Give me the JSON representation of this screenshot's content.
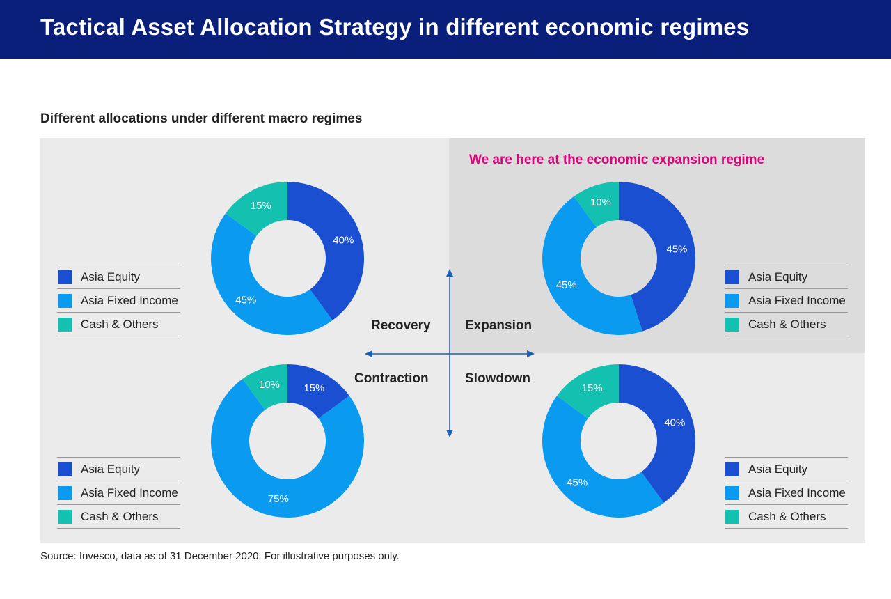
{
  "header": {
    "title": "Tactical Asset Allocation Strategy in different economic regimes"
  },
  "subtitle": "Different allocations under different macro regimes",
  "highlight_note": "We are here at the economic expansion regime",
  "quadrant_labels": {
    "recovery": "Recovery",
    "expansion": "Expansion",
    "contraction": "Contraction",
    "slowdown": "Slowdown"
  },
  "legend_labels": [
    "Asia Equity",
    "Asia Fixed Income",
    "Cash & Others"
  ],
  "colors": {
    "asia_equity": "#1a4fd1",
    "asia_fixed_income": "#0a9bf0",
    "cash_others": "#14c0b0",
    "header_bg": "#0a1f7a",
    "highlight_text": "#e0007a"
  },
  "chart_data": [
    {
      "type": "pie",
      "regime": "Recovery",
      "categories": [
        "Asia Equity",
        "Asia Fixed Income",
        "Cash & Others"
      ],
      "values": [
        40,
        45,
        15
      ],
      "labels": [
        "40%",
        "45%",
        "15%"
      ]
    },
    {
      "type": "pie",
      "regime": "Expansion",
      "categories": [
        "Asia Equity",
        "Asia Fixed Income",
        "Cash & Others"
      ],
      "values": [
        45,
        45,
        10
      ],
      "labels": [
        "45%",
        "45%",
        "10%"
      ]
    },
    {
      "type": "pie",
      "regime": "Contraction",
      "categories": [
        "Asia Equity",
        "Asia Fixed Income",
        "Cash & Others"
      ],
      "values": [
        15,
        75,
        10
      ],
      "labels": [
        "15%",
        "75%",
        "10%"
      ]
    },
    {
      "type": "pie",
      "regime": "Slowdown",
      "categories": [
        "Asia Equity",
        "Asia Fixed Income",
        "Cash & Others"
      ],
      "values": [
        40,
        45,
        15
      ],
      "labels": [
        "40%",
        "45%",
        "15%"
      ]
    }
  ],
  "source": "Source: Invesco, data as of 31 December 2020. For illustrative purposes only."
}
